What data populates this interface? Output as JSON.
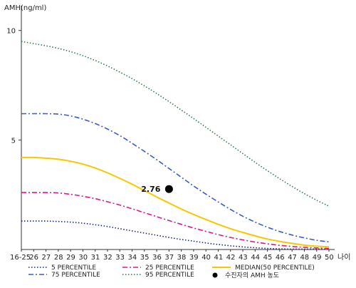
{
  "chart_data": {
    "type": "line",
    "title": "",
    "ylabel": "AMH(ng/ml)",
    "xlabel": "나이",
    "ylim": [
      0,
      11
    ],
    "y_ticks": [
      "5",
      "10"
    ],
    "y_tick_values": [
      5,
      10
    ],
    "categories": [
      "16-25",
      "26",
      "27",
      "28",
      "29",
      "30",
      "31",
      "32",
      "33",
      "34",
      "35",
      "36",
      "37",
      "38",
      "39",
      "40",
      "41",
      "42",
      "43",
      "44",
      "45",
      "46",
      "47",
      "48",
      "49",
      "50"
    ],
    "series": [
      {
        "name": "5 PERCENTILE",
        "color": "#1a237e",
        "style": "dotted",
        "values": [
          1.3,
          1.3,
          1.3,
          1.28,
          1.25,
          1.2,
          1.13,
          1.05,
          0.95,
          0.85,
          0.75,
          0.65,
          0.55,
          0.46,
          0.38,
          0.3,
          0.23,
          0.17,
          0.12,
          0.08,
          0.05,
          0.03,
          0.02,
          0.02,
          0.02,
          0.02
        ]
      },
      {
        "name": "25 PERCENTILE",
        "color": "#d81b8c",
        "style": "dashdot",
        "values": [
          2.6,
          2.6,
          2.6,
          2.58,
          2.52,
          2.43,
          2.32,
          2.18,
          2.03,
          1.86,
          1.68,
          1.5,
          1.32,
          1.15,
          0.98,
          0.83,
          0.68,
          0.55,
          0.44,
          0.34,
          0.26,
          0.19,
          0.14,
          0.1,
          0.07,
          0.05
        ]
      },
      {
        "name": "MEDIAN(50 PERCENTILE)",
        "color": "#f5c800",
        "style": "solid",
        "values": [
          4.2,
          4.2,
          4.17,
          4.12,
          4.03,
          3.9,
          3.72,
          3.5,
          3.25,
          2.98,
          2.69,
          2.4,
          2.12,
          1.85,
          1.6,
          1.37,
          1.15,
          0.95,
          0.78,
          0.62,
          0.48,
          0.37,
          0.28,
          0.2,
          0.15,
          0.12
        ]
      },
      {
        "name": "75 PERCENTILE",
        "color": "#3b5bc9",
        "style": "dashdot",
        "values": [
          6.2,
          6.2,
          6.2,
          6.18,
          6.1,
          5.95,
          5.75,
          5.5,
          5.2,
          4.85,
          4.48,
          4.1,
          3.7,
          3.3,
          2.9,
          2.53,
          2.17,
          1.83,
          1.52,
          1.25,
          1.02,
          0.82,
          0.66,
          0.53,
          0.42,
          0.35
        ]
      },
      {
        "name": "95 PERCENTILE",
        "color": "#2e7d4f",
        "style": "dotted",
        "values": [
          9.5,
          9.4,
          9.3,
          9.18,
          9.03,
          8.85,
          8.63,
          8.38,
          8.1,
          7.8,
          7.47,
          7.12,
          6.75,
          6.37,
          5.98,
          5.58,
          5.18,
          4.78,
          4.38,
          3.98,
          3.6,
          3.23,
          2.88,
          2.55,
          2.25,
          1.98
        ]
      }
    ],
    "highlight_point": {
      "category": "37",
      "value": 2.76,
      "label": "2.76",
      "legend": "수진자의 AMH 농도",
      "color": "#000000"
    },
    "legend_position": "bottom",
    "grid": false
  }
}
